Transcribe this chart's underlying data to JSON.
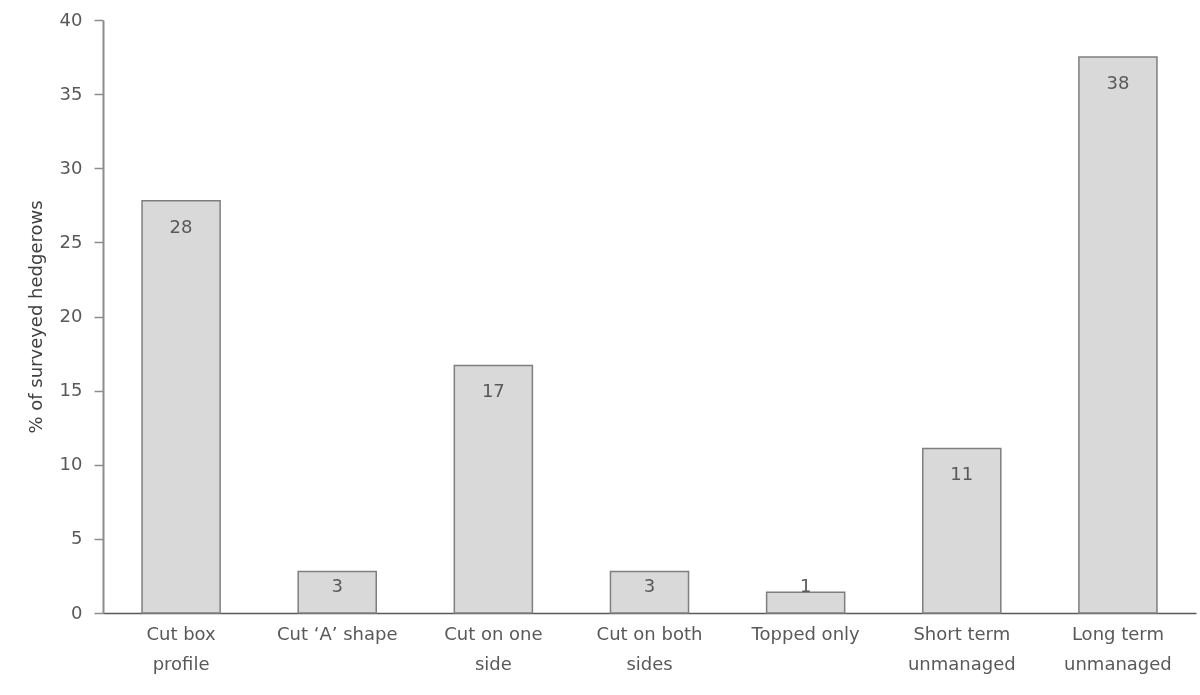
{
  "chart_data": {
    "type": "bar",
    "ylabel": "% of surveyed hedgerows",
    "categories": [
      "Cut box profile",
      "Cut ‘A’ shape",
      "Cut on one side",
      "Cut on both sides",
      "Topped only",
      "Short term unmanaged",
      "Long term unmanaged"
    ],
    "values": [
      27.8,
      2.8,
      16.7,
      2.8,
      1.4,
      11.1,
      37.5
    ],
    "value_labels": [
      "28",
      "3",
      "17",
      "3",
      "1",
      "11",
      "38"
    ],
    "color": "#d9d9d9",
    "ylim": [
      0,
      40
    ],
    "yticks": [
      0,
      5,
      10,
      15,
      20,
      25,
      30,
      35,
      40
    ]
  }
}
